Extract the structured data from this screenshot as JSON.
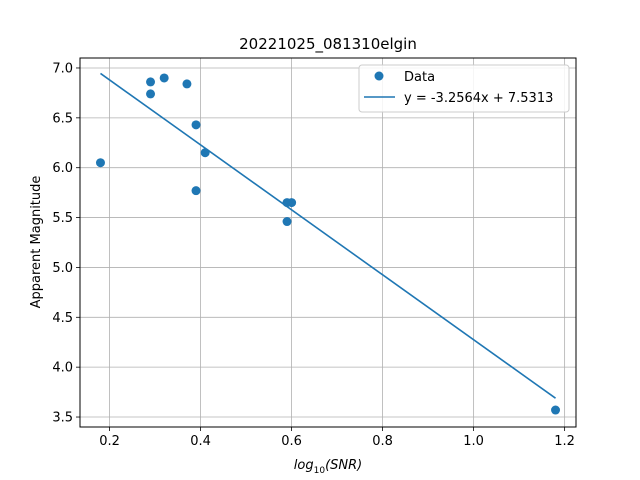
{
  "chart_data": {
    "type": "scatter",
    "title": "20221025_081310elgin",
    "xlabel_base": "log",
    "xlabel_sub": "10",
    "xlabel_arg": "(SNR)",
    "ylabel": "Apparent Magnitude",
    "xlim": [
      0.135,
      1.225
    ],
    "ylim": [
      3.4,
      7.1
    ],
    "x_ticks": [
      0.2,
      0.4,
      0.6,
      0.8,
      1.0,
      1.2
    ],
    "x_tick_labels": [
      "0.2",
      "0.4",
      "0.6",
      "0.8",
      "1.0",
      "1.2"
    ],
    "y_ticks": [
      3.5,
      4.0,
      4.5,
      5.0,
      5.5,
      6.0,
      6.5,
      7.0
    ],
    "y_tick_labels": [
      "3.5",
      "4.0",
      "4.5",
      "5.0",
      "5.5",
      "6.0",
      "6.5",
      "7.0"
    ],
    "grid": true,
    "legend_position": "top-right",
    "series": [
      {
        "name": "Data",
        "kind": "scatter",
        "color": "#1f77b4",
        "x": [
          0.18,
          0.29,
          0.29,
          0.32,
          0.37,
          0.39,
          0.39,
          0.41,
          0.59,
          0.59,
          0.6,
          1.18
        ],
        "y": [
          6.05,
          6.86,
          6.74,
          6.9,
          6.84,
          6.43,
          5.77,
          6.15,
          5.65,
          5.46,
          5.65,
          3.57
        ]
      },
      {
        "name": "y = -3.2564x + 7.5313",
        "kind": "line",
        "color": "#1f77b4",
        "slope": -3.2564,
        "intercept": 7.5313,
        "x_range": [
          0.18,
          1.18
        ]
      }
    ]
  }
}
